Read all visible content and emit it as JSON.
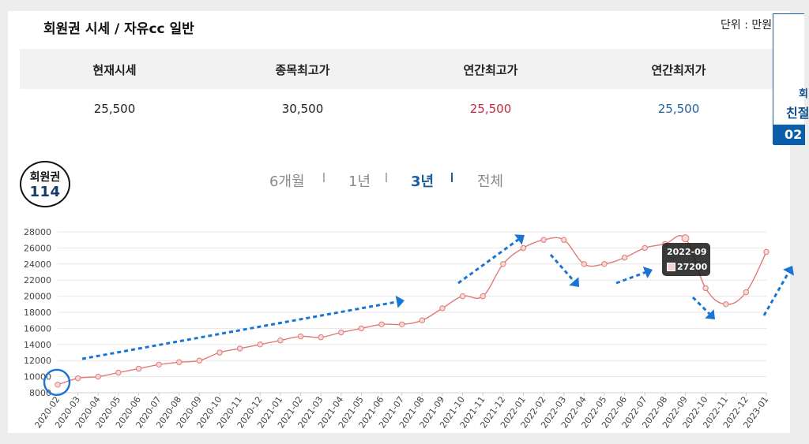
{
  "header": {
    "title": "회원권 시세 / 자유cc 일반",
    "unit": "단위 : 만원"
  },
  "stats": {
    "labels": [
      "현재시세",
      "종목최고가",
      "연간최고가",
      "연간최저가"
    ],
    "values": [
      "25,500",
      "30,500",
      "25,500",
      "25,500"
    ],
    "value_colors": [
      "#222222",
      "#222222",
      "#c8263e",
      "#1e62a0"
    ]
  },
  "side_panel": {
    "line1": "회",
    "line2": "친절",
    "bar": "02"
  },
  "badge": {
    "line1": "회원권",
    "line2": "114"
  },
  "tabs": {
    "items": [
      "6개월",
      "1년",
      "3년",
      "전체"
    ],
    "active": "3년"
  },
  "tooltip": {
    "date": "2022-09",
    "value": "27200"
  },
  "colors": {
    "line": "#e07a76",
    "arrow": "#1a74d4",
    "highlight_ring": "#1a74d4"
  },
  "chart_data": {
    "type": "line",
    "categories": [
      "2020-02",
      "2020-03",
      "2020-04",
      "2020-05",
      "2020-06",
      "2020-07",
      "2020-08",
      "2020-09",
      "2020-10",
      "2020-11",
      "2020-12",
      "2021-01",
      "2021-02",
      "2021-03",
      "2021-04",
      "2021-05",
      "2021-06",
      "2021-07",
      "2021-08",
      "2021-09",
      "2021-10",
      "2021-11",
      "2021-12",
      "2022-01",
      "2022-02",
      "2022-03",
      "2022-04",
      "2022-05",
      "2022-06",
      "2022-07",
      "2022-08",
      "2022-09",
      "2022-10",
      "2022-11",
      "2022-12",
      "2023-01"
    ],
    "values": [
      9000,
      9800,
      10000,
      10500,
      11000,
      11500,
      11800,
      12000,
      13000,
      13500,
      14000,
      14500,
      15000,
      14900,
      15500,
      16000,
      16500,
      16500,
      17000,
      18500,
      20000,
      20000,
      24000,
      26000,
      27000,
      27000,
      24000,
      24000,
      24800,
      26000,
      26500,
      27200,
      21000,
      19000,
      20500,
      25500
    ],
    "yticks": [
      8000,
      10000,
      12000,
      14000,
      16000,
      18000,
      20000,
      22000,
      24000,
      26000,
      28000
    ],
    "ylim": [
      8000,
      28000
    ],
    "title": "",
    "xlabel": "",
    "ylabel": "",
    "grid": true
  }
}
